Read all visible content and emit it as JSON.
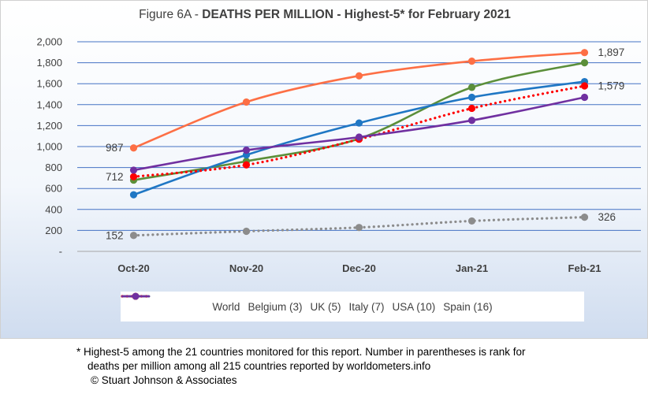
{
  "title": {
    "prefix": "Figure 6A - ",
    "bold": "DEATHS PER MILLION - Highest-5* for February 2021"
  },
  "chart_data": {
    "type": "line",
    "categories": [
      "Oct-20",
      "Nov-20",
      "Dec-20",
      "Jan-21",
      "Feb-21"
    ],
    "yticks": [
      "-",
      "200",
      "400",
      "600",
      "800",
      "1,000",
      "1,200",
      "1,400",
      "1,600",
      "1,800",
      "2,000"
    ],
    "ylim": [
      0,
      2000
    ],
    "grid": true,
    "legend_position": "bottom",
    "series": [
      {
        "name": "World",
        "color": "#8c8c8c",
        "style": "dotted",
        "values": [
          152,
          192,
          228,
          290,
          326
        ],
        "labels": {
          "0": "152",
          "4": "326"
        }
      },
      {
        "name": "Belgium (3)",
        "color": "#fd6f45",
        "style": "solid",
        "values": [
          987,
          1425,
          1675,
          1815,
          1897
        ],
        "labels": {
          "0": "987",
          "4": "1,897"
        }
      },
      {
        "name": "UK (5)",
        "color": "#5b8f3a",
        "style": "solid",
        "values": [
          680,
          860,
          1075,
          1565,
          1800
        ],
        "labels": {}
      },
      {
        "name": "Italy (7)",
        "color": "#1f77c4",
        "style": "solid",
        "values": [
          540,
          920,
          1225,
          1470,
          1620
        ],
        "labels": {}
      },
      {
        "name": "USA (10)",
        "color": "#ff0000",
        "style": "dotted",
        "values": [
          712,
          825,
          1070,
          1365,
          1579
        ],
        "labels": {
          "0": "712",
          "4": "1,579"
        }
      },
      {
        "name": "Spain (16)",
        "color": "#7030a0",
        "style": "solid",
        "values": [
          775,
          965,
          1090,
          1250,
          1470
        ],
        "labels": {}
      }
    ]
  },
  "footnote": {
    "line1": "* Highest-5 among the 21 countries monitored for this report. Number in parentheses is rank for",
    "line2": "deaths per million among all 215 countries reported by worldometers.info",
    "line3": "© Stuart Johnson & Associates"
  }
}
